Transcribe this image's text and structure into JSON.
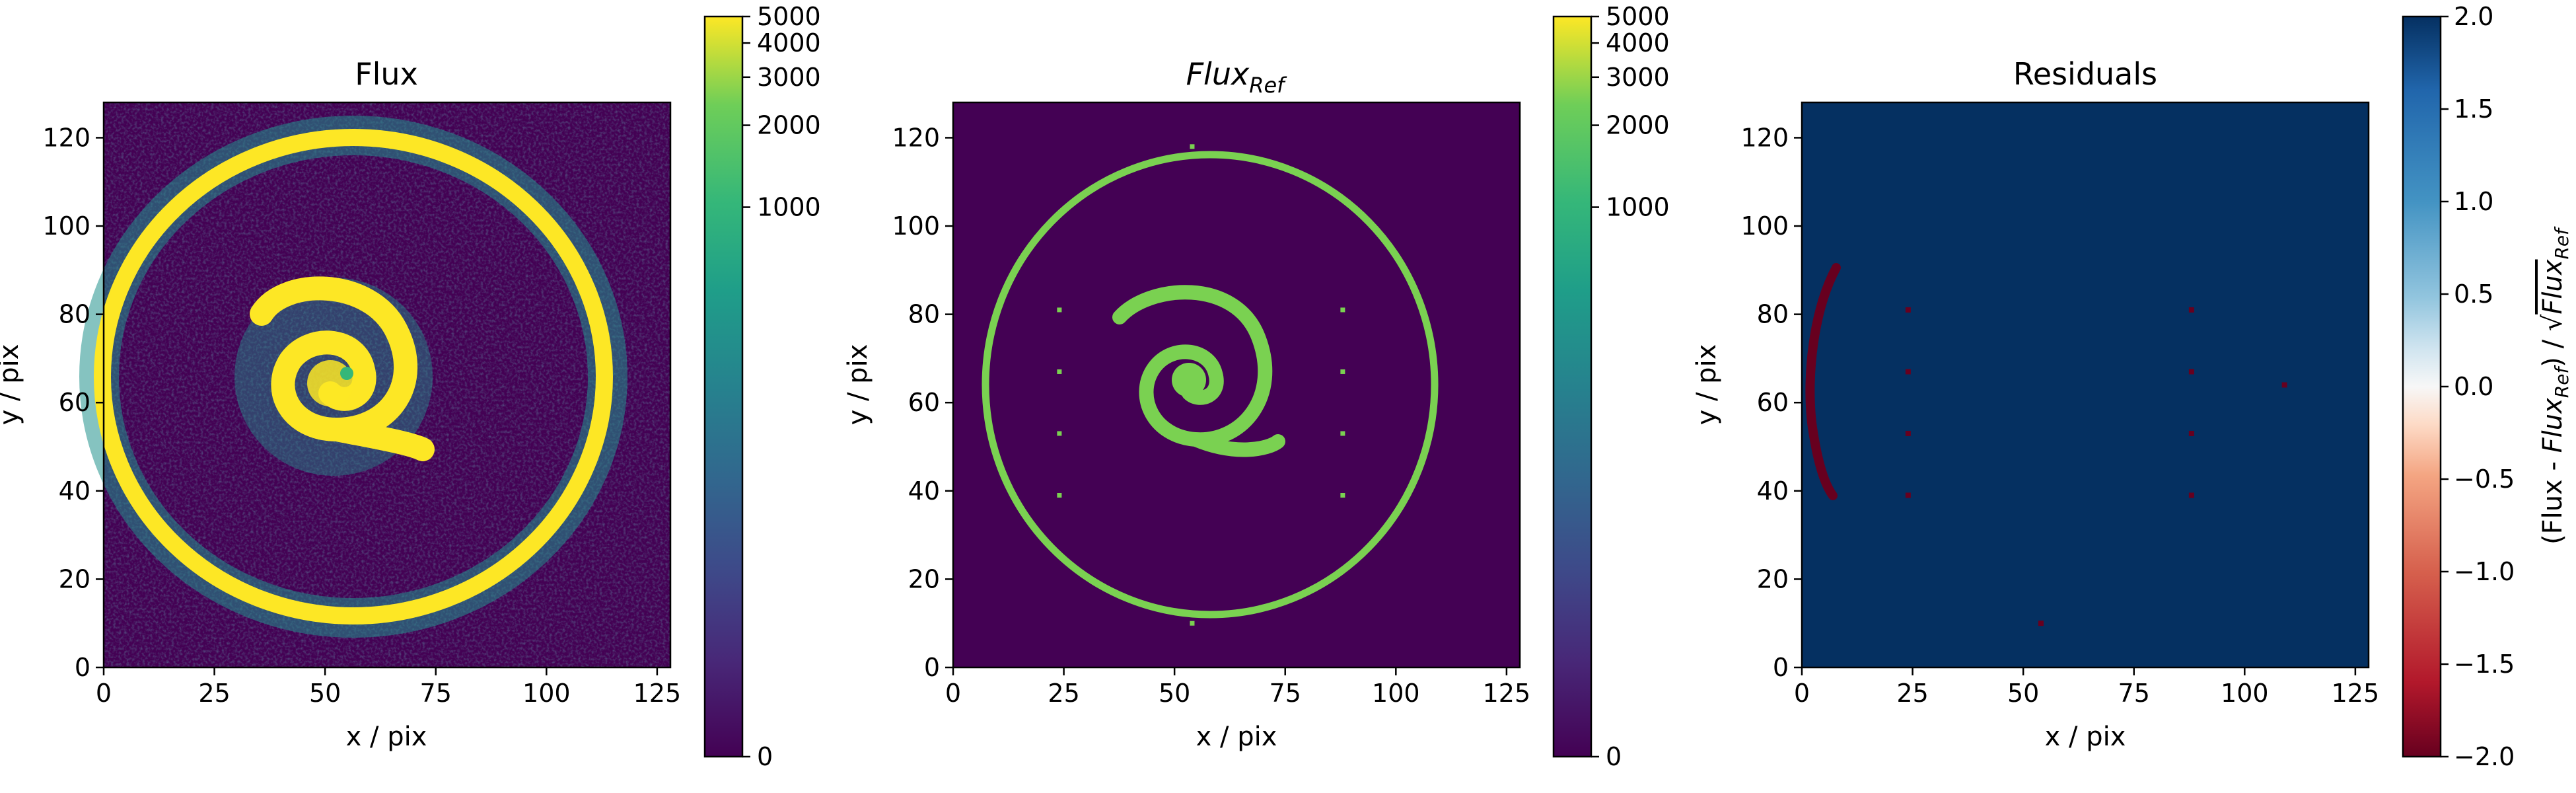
{
  "figure": {
    "background": "#ffffff"
  },
  "chart_data": [
    {
      "type": "heatmap",
      "title": "Flux",
      "xlabel": "x / pix",
      "ylabel": "y / pix",
      "xlim": [
        0,
        128
      ],
      "ylim": [
        0,
        128
      ],
      "xticks": [
        0,
        25,
        50,
        75,
        100,
        125
      ],
      "yticks": [
        0,
        20,
        40,
        60,
        80,
        100,
        120
      ],
      "image_content": "noisy galaxy: bright outer ring and spiral core",
      "colormap": "viridis",
      "color_scale": "log-like (symlog)",
      "colorbar": {
        "ticks": [
          0,
          1000,
          2000,
          3000,
          4000,
          5000
        ],
        "range": [
          0,
          5000
        ]
      },
      "colors": {
        "low": "#440154",
        "mid": "#21918c",
        "high": "#fde725"
      }
    },
    {
      "type": "heatmap",
      "title_main": "Flux",
      "title_sub": "Ref",
      "xlabel": "x / pix",
      "ylabel": "y / pix",
      "xlim": [
        0,
        128
      ],
      "ylim": [
        0,
        128
      ],
      "xticks": [
        0,
        25,
        50,
        75,
        100,
        125
      ],
      "yticks": [
        0,
        20,
        40,
        60,
        80,
        100,
        120
      ],
      "image_content": "reference model: thin outer ring, spiral core, isolated point sources",
      "point_sources": [
        [
          24,
          81
        ],
        [
          24,
          67
        ],
        [
          24,
          53
        ],
        [
          24,
          39
        ],
        [
          88,
          81
        ],
        [
          88,
          67
        ],
        [
          88,
          53
        ],
        [
          88,
          39
        ],
        [
          54,
          118
        ],
        [
          54,
          10
        ],
        [
          109,
          64
        ]
      ],
      "colormap": "viridis",
      "colorbar": {
        "ticks": [
          0,
          1000,
          2000,
          3000,
          4000,
          5000
        ],
        "range": [
          0,
          5000
        ]
      },
      "colors": {
        "background": "#440154",
        "model": "#7ad151"
      }
    },
    {
      "type": "heatmap",
      "title": "Residuals",
      "xlabel": "x / pix",
      "ylabel": "y / pix",
      "xlim": [
        0,
        128
      ],
      "ylim": [
        0,
        128
      ],
      "xticks": [
        0,
        25,
        50,
        75,
        100,
        125
      ],
      "yticks": [
        0,
        20,
        40,
        60,
        80,
        100,
        120
      ],
      "image_content": "mostly saturated positive residuals with a negative arc on the left edge and small negative spots",
      "negative_spots": [
        [
          24,
          81
        ],
        [
          24,
          67
        ],
        [
          24,
          53
        ],
        [
          24,
          39
        ],
        [
          88,
          81
        ],
        [
          88,
          67
        ],
        [
          88,
          53
        ],
        [
          88,
          39
        ],
        [
          54,
          10
        ],
        [
          109,
          64
        ],
        [
          4,
          80
        ]
      ],
      "colormap": "RdBu",
      "colorbar": {
        "ticks": [
          -2.0,
          -1.5,
          -1.0,
          -0.5,
          0.0,
          0.5,
          1.0,
          1.5,
          2.0
        ],
        "tick_labels": [
          "−2.0",
          "−1.5",
          "−1.0",
          "−0.5",
          "0.0",
          "0.5",
          "1.0",
          "1.5",
          "2.0"
        ],
        "range": [
          -2.0,
          2.0
        ],
        "label_parts": [
          "(Flux - ",
          "Flux",
          "Ref",
          ") / √",
          "Flux",
          "Ref"
        ]
      },
      "colors": {
        "high": "#053061",
        "low": "#67001f",
        "mid": "#f7f7f7"
      }
    }
  ]
}
